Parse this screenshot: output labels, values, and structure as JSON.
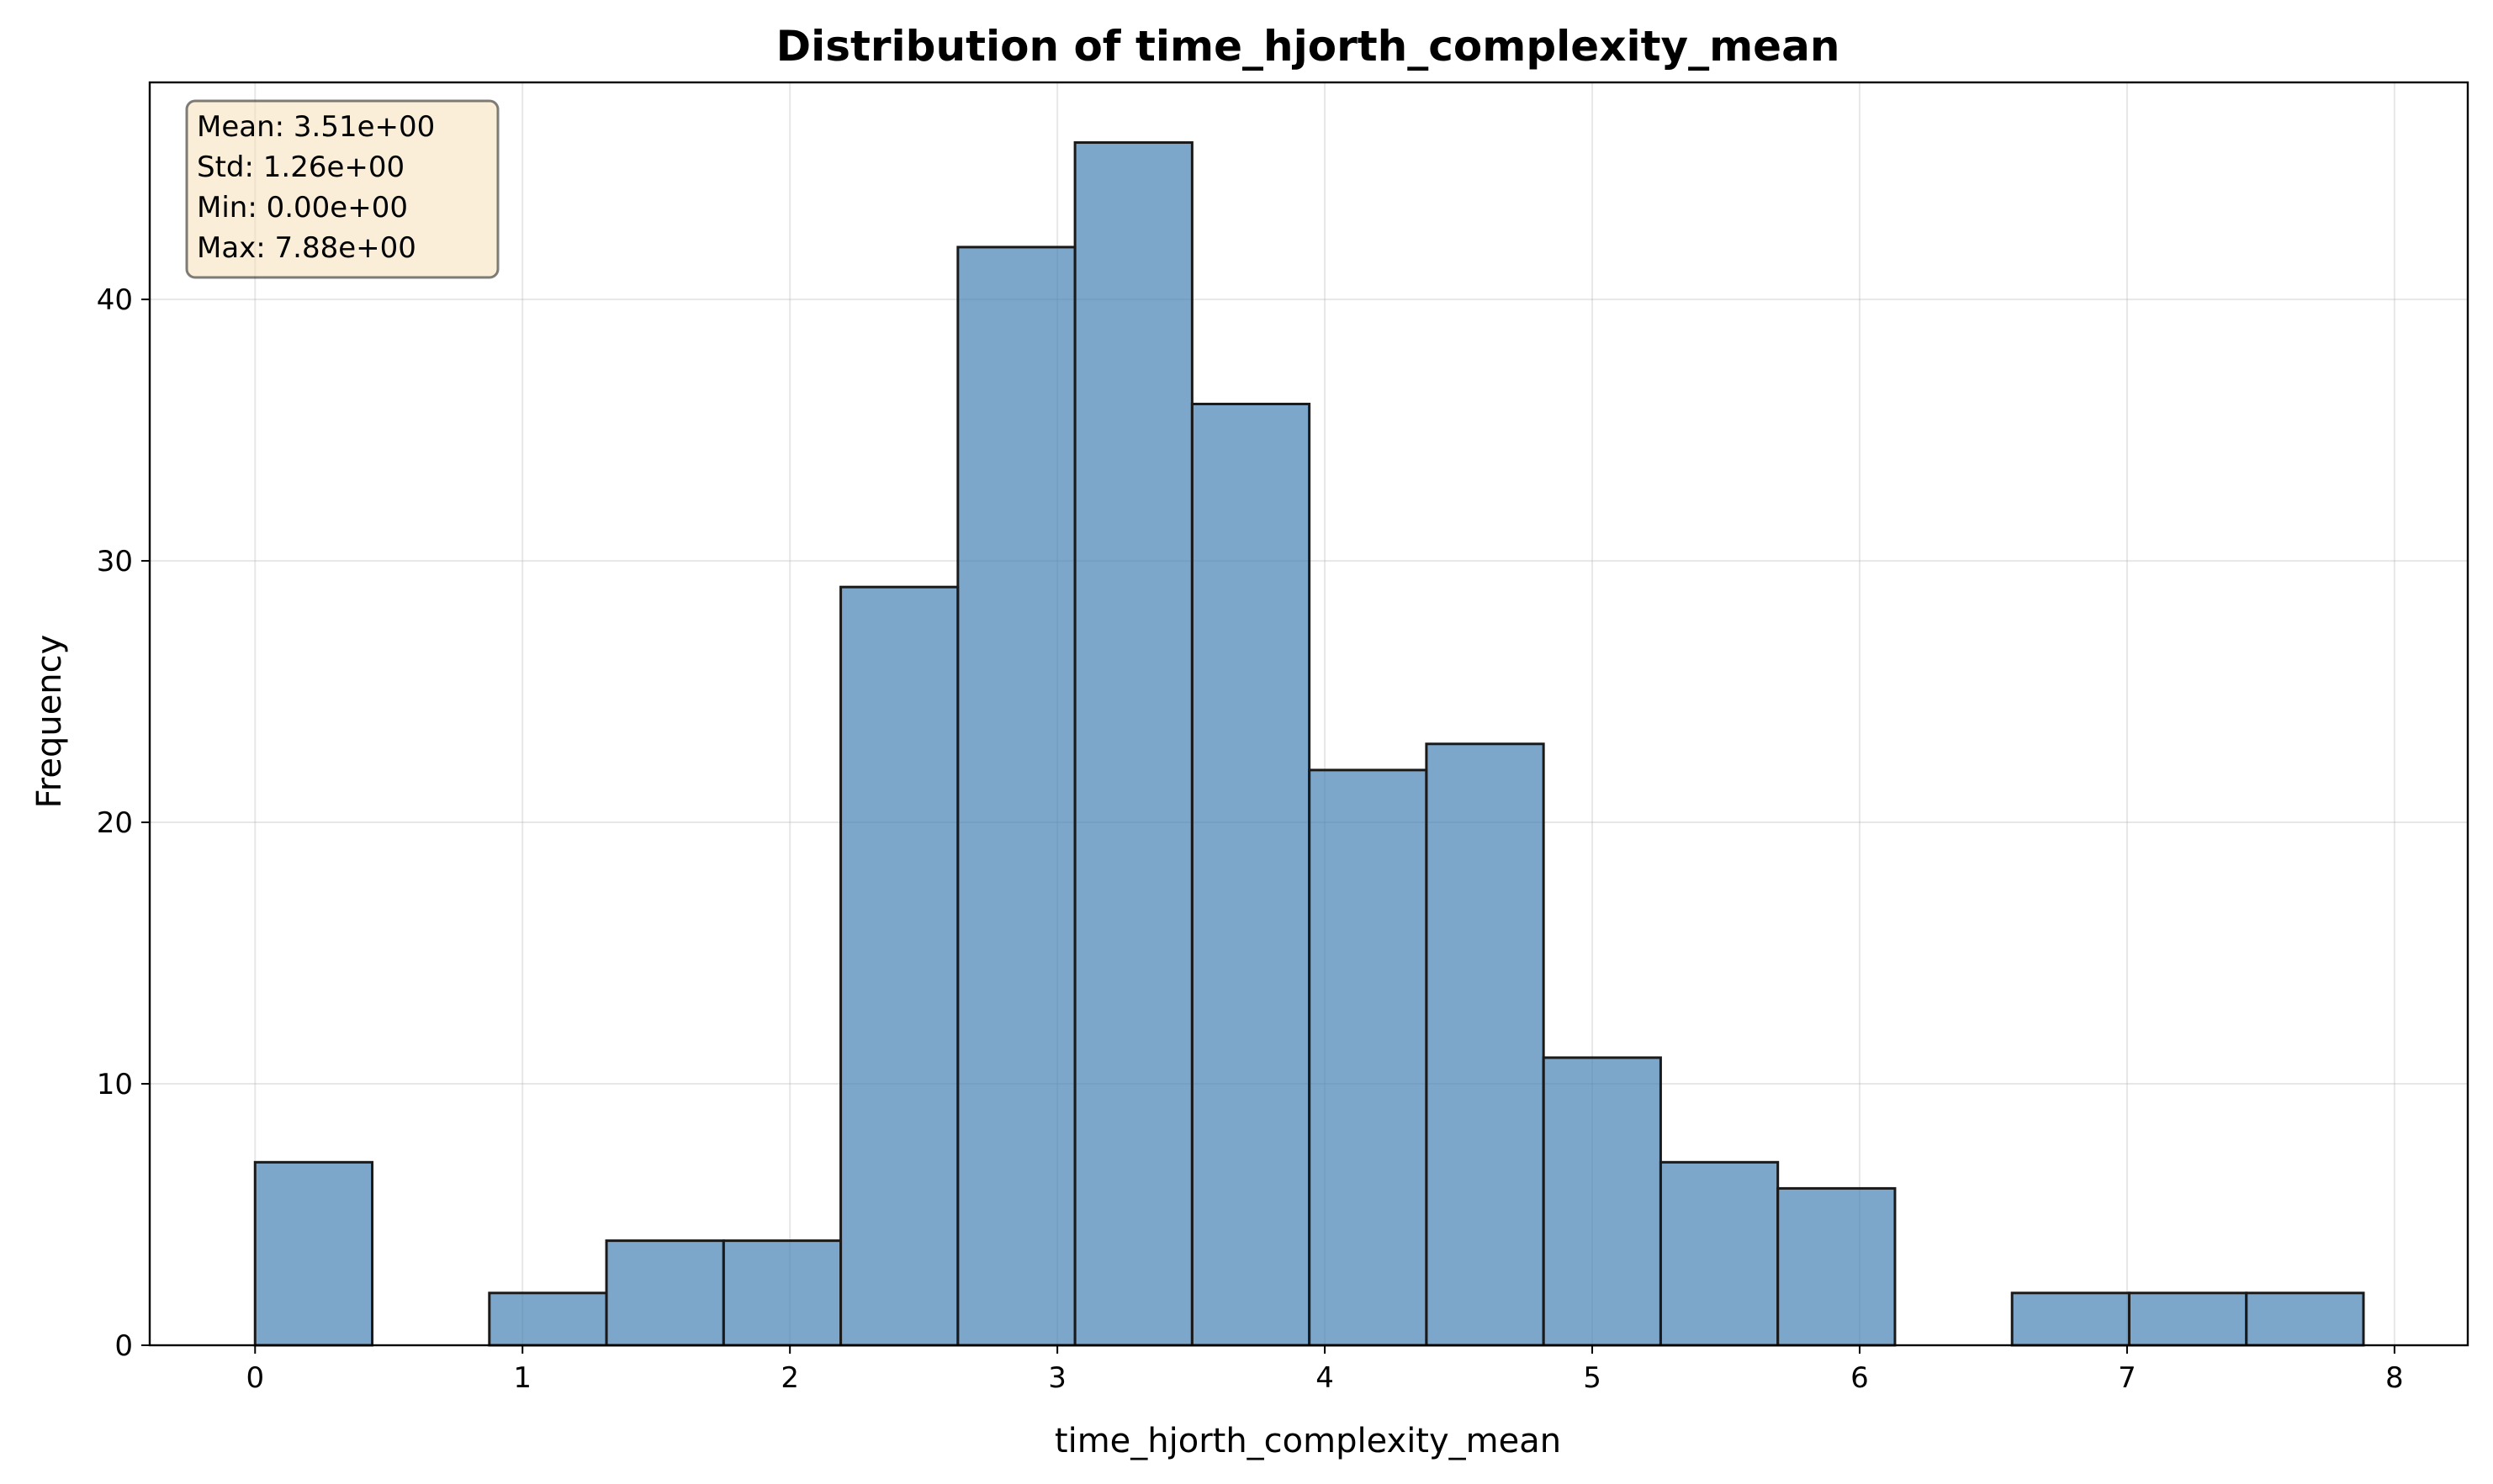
{
  "chart_data": {
    "type": "bar",
    "title": "Distribution of time_hjorth_complexity_mean",
    "xlabel": "time_hjorth_complexity_mean",
    "ylabel": "Frequency",
    "xlim": [
      -0.394,
      8.274
    ],
    "ylim": [
      0,
      48.3
    ],
    "x_ticks": [
      "0",
      "1",
      "2",
      "3",
      "4",
      "5",
      "6",
      "7",
      "8"
    ],
    "y_ticks": [
      "0",
      "10",
      "20",
      "30",
      "40"
    ],
    "grid": true,
    "bin_edges": [
      0.0,
      0.438,
      0.876,
      1.314,
      1.752,
      2.19,
      2.628,
      3.066,
      3.504,
      3.942,
      4.38,
      4.818,
      5.256,
      5.694,
      6.132,
      6.57,
      7.008,
      7.446,
      7.884
    ],
    "values": [
      7,
      0,
      2,
      4,
      4,
      29,
      42,
      46,
      36,
      22,
      23,
      11,
      7,
      6,
      0,
      2,
      2,
      2
    ],
    "bar_color": "#4682b4",
    "edge_color": "#1a1a1a",
    "stats_box": {
      "placement": "top-left",
      "lines": [
        "Mean: 3.51e+00",
        "Std: 1.26e+00",
        "Min: 0.00e+00",
        "Max: 7.88e+00"
      ]
    }
  }
}
